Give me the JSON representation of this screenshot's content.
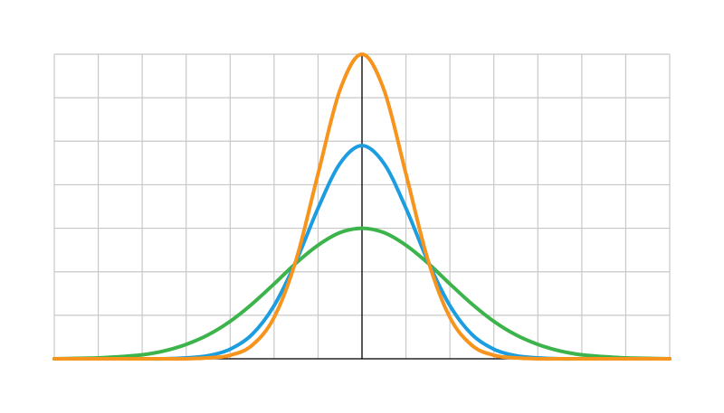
{
  "chart_data": {
    "type": "line",
    "x": [
      -7,
      -6.5,
      -6,
      -5.5,
      -5,
      -4.5,
      -4,
      -3.5,
      -3,
      -2.5,
      -2,
      -1.5,
      -1,
      -0.5,
      0,
      0.5,
      1,
      1.5,
      2,
      2.5,
      3,
      3.5,
      4,
      4.5,
      5,
      5.5,
      6,
      6.5,
      7
    ],
    "series": [
      {
        "color": "#3cb44b",
        "values": [
          0,
          0.01,
          0.02,
          0.05,
          0.09,
          0.18,
          0.33,
          0.55,
          0.86,
          1.26,
          1.72,
          2.2,
          2.61,
          2.9,
          3,
          2.9,
          2.61,
          2.2,
          1.72,
          1.26,
          0.86,
          0.55,
          0.33,
          0.18,
          0.09,
          0.05,
          0.02,
          0.01,
          0
        ]
      },
      {
        "color": "#1c9de0",
        "values": [
          0,
          0,
          0,
          0,
          0,
          0,
          0.02,
          0.07,
          0.22,
          0.56,
          1.22,
          2.24,
          3.46,
          4.49,
          4.9,
          4.49,
          3.46,
          2.24,
          1.22,
          0.56,
          0.22,
          0.07,
          0.02,
          0,
          0,
          0,
          0,
          0,
          0
        ]
      },
      {
        "color": "#f7941d",
        "values": [
          0,
          0,
          0,
          0,
          0,
          0,
          0,
          0.02,
          0.08,
          0.31,
          0.95,
          2.27,
          4.25,
          6.18,
          7,
          6.18,
          4.25,
          2.27,
          0.95,
          0.31,
          0.08,
          0.02,
          0,
          0,
          0,
          0,
          0,
          0,
          0
        ]
      }
    ],
    "xlim": [
      -7,
      7
    ],
    "xticks": [
      -7,
      -6,
      -5,
      -4,
      -3,
      -2,
      -1,
      0,
      1,
      2,
      3,
      4,
      5,
      6,
      7
    ],
    "ylim": [
      0,
      7
    ],
    "yticks": [
      0,
      1,
      2,
      3,
      4,
      5,
      6,
      7
    ],
    "grid": true
  }
}
